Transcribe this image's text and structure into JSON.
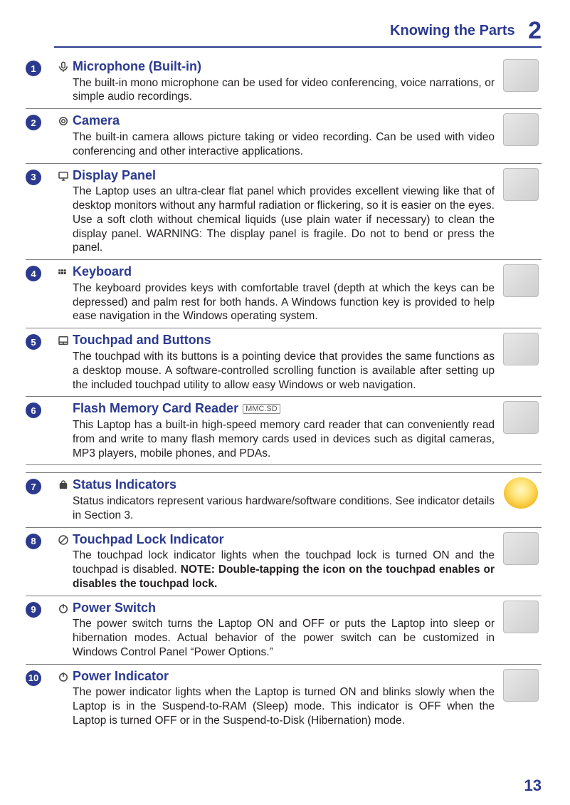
{
  "header": {
    "title": "Knowing the Parts",
    "chapter": "2"
  },
  "pageNumber": "13",
  "items": [
    {
      "num": "1",
      "icon": "mic",
      "thumb": "mic",
      "title": "Microphone (Built-in)",
      "desc": "The built-in mono microphone can be used for video conferencing, voice narrations, or simple audio recordings."
    },
    {
      "num": "2",
      "icon": "camera",
      "thumb": "camera",
      "title": "Camera",
      "desc": "The built-in camera allows picture taking or video recording. Can be used with video conferencing and other interactive applications."
    },
    {
      "num": "3",
      "icon": "display",
      "thumb": "display",
      "title": "Display Panel",
      "desc": "The Laptop uses an ultra-clear flat panel which provides excellent viewing like that of desktop monitors without any harmful radiation or flickering, so it is easier on the eyes. Use a soft cloth without chemical liquids (use plain water if necessary) to clean the display panel. WARNING: The display panel is fragile. Do not to bend or press the panel."
    },
    {
      "num": "4",
      "icon": "keyboard",
      "thumb": "keyboard",
      "title": "Keyboard",
      "desc": "The keyboard provides keys with comfortable travel (depth at which the keys can be depressed) and palm rest for both hands. A Windows function key is provided to help ease navigation in the Windows operating system."
    },
    {
      "num": "5",
      "icon": "touchpad",
      "thumb": "hand",
      "title": "Touchpad and Buttons",
      "desc": "The touchpad with its buttons is a pointing device that provides the same functions as a desktop mouse. A software-controlled scrolling function is available after setting up the included touchpad utility to allow easy Windows or web navigation."
    },
    {
      "num": "6",
      "icon": "",
      "thumb": "cards",
      "title": "Flash Memory Card Reader",
      "suffix": "MMC.SD",
      "desc": "This Laptop has a built-in high-speed memory card reader that can conveniently read from and write to many flash memory cards used in devices such as digital cameras, MP3 players, mobile phones, and PDAs."
    },
    {
      "num": "7",
      "icon": "status",
      "thumb": "bulb",
      "title": "Status Indicators",
      "desc": "Status indicators represent various hardware/software conditions. See indicator details in Section 3."
    },
    {
      "num": "8",
      "icon": "lock",
      "thumb": "plain",
      "title": "Touchpad Lock Indicator",
      "descHtml": "The touchpad lock indicator lights when the touchpad lock is turned ON and the touchpad is disabled. <b>NOTE: Double-tapping the icon on the touchpad enables or disables the touchpad lock.</b>"
    },
    {
      "num": "9",
      "icon": "power",
      "thumb": "hand",
      "title": "Power Switch",
      "desc": "The power switch turns the Laptop ON and OFF or puts the Laptop into sleep or hibernation modes. Actual behavior of the power switch can be customized in Windows Control Panel “Power Options.”"
    },
    {
      "num": "10",
      "icon": "power",
      "thumb": "plain",
      "title": "Power Indicator",
      "desc": "The power indicator lights when the Laptop is turned ON and blinks slowly when the Laptop is in the Suspend-to-RAM (Sleep) mode. This indicator is OFF when the Laptop is turned OFF or in the Suspend-to-Disk (Hibernation) mode."
    }
  ],
  "icons": {
    "mic": "<svg viewBox='0 0 24 24' fill='none' stroke='currentColor' stroke-width='2'><rect x='9' y='3' width='6' height='11' rx='3'/><path d='M5 11a7 7 0 0 0 14 0M12 18v3'/></svg>",
    "camera": "<svg viewBox='0 0 24 24' fill='none' stroke='currentColor' stroke-width='2'><circle cx='12' cy='12' r='7'/><circle cx='12' cy='12' r='3'/></svg>",
    "display": "<svg viewBox='0 0 24 24' fill='none' stroke='currentColor' stroke-width='2'><rect x='4' y='5' width='16' height='11' rx='1'/><path d='M9 20h6M12 16v4'/></svg>",
    "keyboard": "<svg viewBox='0 0 24 24' fill='currentColor'><rect x='3' y='7' width='4' height='4'/><rect x='8' y='7' width='4' height='4'/><rect x='13' y='7' width='4' height='4'/><rect x='3' y='12' width='4' height='4'/><rect x='8' y='12' width='4' height='4'/><rect x='13' y='12' width='4' height='4'/></svg>",
    "touchpad": "<svg viewBox='0 0 24 24' fill='none' stroke='currentColor' stroke-width='2'><rect x='4' y='5' width='16' height='14' rx='1'/><line x1='4' y1='15' x2='20' y2='15'/><line x1='12' y1='15' x2='12' y2='19'/></svg>",
    "status": "<svg viewBox='0 0 24 24' fill='none' stroke='currentColor' stroke-width='2'><rect x='6' y='9' width='12' height='9' rx='1' fill='currentColor'/><path d='M9 9V7a3 3 0 0 1 6 0v2' fill='none'/><text x='12' y='16' text-anchor='middle' font-size='8' fill='#fff' font-weight='bold'>A</text></svg>",
    "lock": "<svg viewBox='0 0 24 24' fill='none' stroke='currentColor' stroke-width='2'><circle cx='12' cy='12' r='8'/><line x1='6' y1='18' x2='18' y2='6'/></svg>",
    "power": "<svg viewBox='0 0 24 24' fill='none' stroke='currentColor' stroke-width='2'><circle cx='12' cy='13' r='7'/><line x1='12' y1='4' x2='12' y2='12'/></svg>"
  }
}
